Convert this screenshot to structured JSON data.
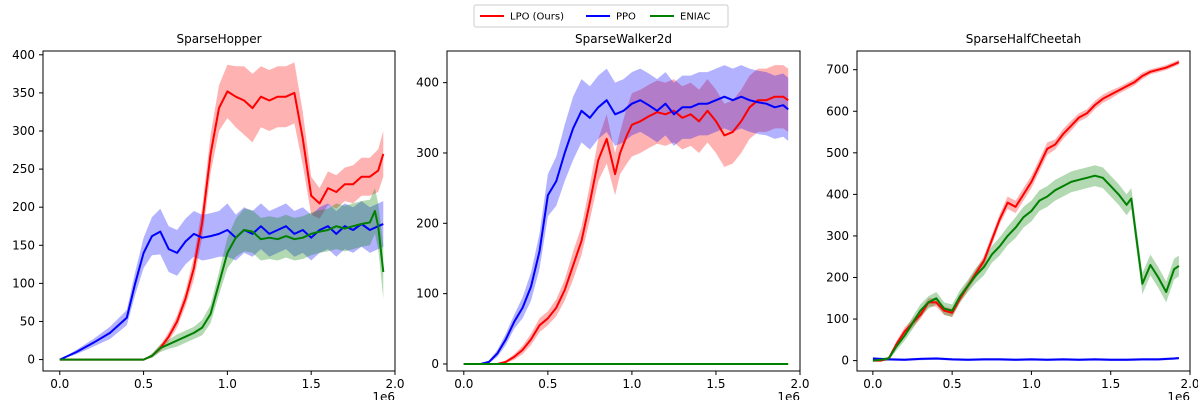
{
  "legend": {
    "placement": "top-center",
    "entries": [
      {
        "label": "LPO (Ours)",
        "color": "#ff0000"
      },
      {
        "label": "PPO",
        "color": "#0000ff"
      },
      {
        "label": "ENIAC",
        "color": "#008000"
      }
    ]
  },
  "chart_data": [
    {
      "type": "line",
      "title": "SparseHopper",
      "xlabel": "",
      "ylabel": "",
      "x_scale_label": "1e6",
      "xlim": [
        -0.1,
        2.0
      ],
      "ylim": [
        -15,
        405
      ],
      "xticks": [
        0.0,
        0.5,
        1.0,
        1.5,
        2.0
      ],
      "xtick_labels": [
        "0.0",
        "0.5",
        "1.0",
        "1.5",
        "2.0"
      ],
      "yticks": [
        0,
        50,
        100,
        150,
        200,
        250,
        300,
        350,
        400
      ],
      "grid": false,
      "series": [
        {
          "name": "LPO (Ours)",
          "color": "#ff0000",
          "x": [
            0,
            0.5,
            0.55,
            0.6,
            0.65,
            0.7,
            0.75,
            0.8,
            0.85,
            0.9,
            0.95,
            1.0,
            1.05,
            1.1,
            1.15,
            1.2,
            1.25,
            1.3,
            1.35,
            1.4,
            1.45,
            1.5,
            1.55,
            1.6,
            1.65,
            1.7,
            1.75,
            1.8,
            1.85,
            1.9,
            1.93
          ],
          "y": [
            0,
            0,
            5,
            15,
            30,
            50,
            80,
            120,
            180,
            270,
            330,
            352,
            345,
            340,
            330,
            345,
            340,
            345,
            345,
            350,
            290,
            215,
            205,
            225,
            220,
            230,
            230,
            240,
            240,
            248,
            270
          ],
          "band": [
            0,
            0,
            2,
            4,
            6,
            8,
            10,
            15,
            20,
            25,
            30,
            35,
            40,
            45,
            45,
            40,
            40,
            40,
            40,
            40,
            35,
            25,
            20,
            22,
            22,
            22,
            25,
            25,
            25,
            28,
            30
          ]
        },
        {
          "name": "PPO",
          "color": "#0000ff",
          "x": [
            0,
            0.1,
            0.2,
            0.3,
            0.4,
            0.45,
            0.5,
            0.55,
            0.6,
            0.65,
            0.7,
            0.75,
            0.8,
            0.85,
            0.9,
            0.95,
            1.0,
            1.05,
            1.1,
            1.15,
            1.2,
            1.25,
            1.3,
            1.35,
            1.4,
            1.45,
            1.5,
            1.55,
            1.6,
            1.65,
            1.7,
            1.75,
            1.8,
            1.85,
            1.9,
            1.93
          ],
          "y": [
            0,
            10,
            22,
            35,
            55,
            100,
            140,
            162,
            168,
            145,
            140,
            155,
            165,
            160,
            162,
            165,
            170,
            160,
            170,
            165,
            175,
            165,
            170,
            175,
            165,
            170,
            160,
            170,
            175,
            165,
            175,
            170,
            178,
            170,
            175,
            178
          ],
          "band": [
            0,
            3,
            5,
            8,
            10,
            15,
            20,
            25,
            30,
            30,
            30,
            30,
            30,
            30,
            30,
            30,
            35,
            30,
            30,
            30,
            30,
            30,
            30,
            30,
            30,
            30,
            30,
            30,
            30,
            30,
            30,
            30,
            30,
            30,
            30,
            30
          ]
        },
        {
          "name": "ENIAC",
          "color": "#008000",
          "x": [
            0,
            0.5,
            0.55,
            0.6,
            0.65,
            0.7,
            0.75,
            0.8,
            0.85,
            0.9,
            0.95,
            1.0,
            1.05,
            1.1,
            1.15,
            1.2,
            1.25,
            1.3,
            1.35,
            1.4,
            1.45,
            1.5,
            1.55,
            1.6,
            1.65,
            1.7,
            1.75,
            1.8,
            1.85,
            1.88,
            1.9,
            1.93
          ],
          "y": [
            0,
            0,
            5,
            15,
            20,
            25,
            30,
            35,
            42,
            60,
            100,
            140,
            160,
            170,
            168,
            158,
            160,
            158,
            162,
            158,
            160,
            165,
            168,
            170,
            175,
            172,
            175,
            178,
            180,
            195,
            175,
            115
          ],
          "band": [
            0,
            0,
            3,
            5,
            6,
            8,
            8,
            8,
            10,
            12,
            15,
            20,
            25,
            28,
            28,
            28,
            28,
            28,
            28,
            28,
            28,
            28,
            28,
            28,
            30,
            30,
            30,
            30,
            30,
            30,
            30,
            35
          ]
        }
      ]
    },
    {
      "type": "line",
      "title": "SparseWalker2d",
      "xlabel": "",
      "ylabel": "",
      "x_scale_label": "1e6",
      "xlim": [
        -0.1,
        2.0
      ],
      "ylim": [
        -10,
        445
      ],
      "xticks": [
        0.0,
        0.5,
        1.0,
        1.5,
        2.0
      ],
      "xtick_labels": [
        "0.0",
        "0.5",
        "1.0",
        "1.5",
        "2.0"
      ],
      "yticks": [
        0,
        100,
        200,
        300,
        400
      ],
      "grid": false,
      "series": [
        {
          "name": "LPO (Ours)",
          "color": "#ff0000",
          "x": [
            0,
            0.2,
            0.25,
            0.3,
            0.35,
            0.4,
            0.45,
            0.5,
            0.55,
            0.6,
            0.65,
            0.7,
            0.75,
            0.8,
            0.85,
            0.9,
            0.93,
            0.97,
            1.0,
            1.05,
            1.1,
            1.15,
            1.2,
            1.25,
            1.3,
            1.35,
            1.4,
            1.45,
            1.5,
            1.55,
            1.6,
            1.65,
            1.7,
            1.75,
            1.8,
            1.85,
            1.9,
            1.93
          ],
          "y": [
            0,
            0,
            3,
            10,
            20,
            35,
            55,
            65,
            80,
            105,
            140,
            175,
            230,
            290,
            320,
            270,
            300,
            325,
            340,
            345,
            352,
            358,
            355,
            360,
            350,
            355,
            345,
            360,
            345,
            325,
            330,
            345,
            365,
            375,
            375,
            380,
            380,
            375
          ],
          "band": [
            0,
            0,
            2,
            4,
            6,
            8,
            10,
            10,
            12,
            15,
            20,
            20,
            25,
            30,
            35,
            30,
            30,
            40,
            45,
            45,
            45,
            45,
            45,
            45,
            45,
            45,
            45,
            45,
            45,
            45,
            45,
            45,
            45,
            45,
            45,
            45,
            45,
            45
          ]
        },
        {
          "name": "PPO",
          "color": "#0000ff",
          "x": [
            0,
            0.1,
            0.15,
            0.2,
            0.25,
            0.3,
            0.35,
            0.4,
            0.45,
            0.5,
            0.55,
            0.6,
            0.65,
            0.7,
            0.75,
            0.8,
            0.85,
            0.9,
            0.95,
            1.0,
            1.05,
            1.1,
            1.15,
            1.2,
            1.25,
            1.3,
            1.35,
            1.4,
            1.45,
            1.5,
            1.55,
            1.6,
            1.65,
            1.7,
            1.75,
            1.8,
            1.85,
            1.9,
            1.93
          ],
          "y": [
            0,
            0,
            3,
            15,
            35,
            60,
            80,
            110,
            160,
            240,
            260,
            300,
            335,
            360,
            350,
            365,
            375,
            355,
            360,
            370,
            375,
            368,
            360,
            370,
            355,
            365,
            365,
            370,
            370,
            375,
            380,
            375,
            380,
            375,
            372,
            370,
            365,
            368,
            362
          ],
          "band": [
            0,
            0,
            2,
            5,
            8,
            10,
            15,
            20,
            25,
            30,
            35,
            40,
            45,
            45,
            45,
            45,
            45,
            45,
            45,
            45,
            45,
            45,
            45,
            45,
            45,
            45,
            45,
            45,
            45,
            45,
            45,
            45,
            45,
            45,
            45,
            45,
            45,
            45,
            45
          ]
        },
        {
          "name": "ENIAC",
          "color": "#008000",
          "x": [
            0,
            1.93
          ],
          "y": [
            0,
            0
          ],
          "band": [
            0,
            0
          ]
        }
      ]
    },
    {
      "type": "line",
      "title": "SparseHalfCheetah",
      "xlabel": "",
      "ylabel": "",
      "x_scale_label": "1e6",
      "xlim": [
        -0.1,
        2.0
      ],
      "ylim": [
        -25,
        745
      ],
      "xticks": [
        0.0,
        0.5,
        1.0,
        1.5,
        2.0
      ],
      "xtick_labels": [
        "0.0",
        "0.5",
        "1.0",
        "1.5",
        "2.0"
      ],
      "yticks": [
        0,
        100,
        200,
        300,
        400,
        500,
        600,
        700
      ],
      "grid": false,
      "series": [
        {
          "name": "LPO (Ours)",
          "color": "#ff0000",
          "x": [
            0,
            0.05,
            0.1,
            0.15,
            0.2,
            0.25,
            0.3,
            0.35,
            0.4,
            0.45,
            0.5,
            0.55,
            0.6,
            0.65,
            0.7,
            0.75,
            0.8,
            0.85,
            0.9,
            0.95,
            1.0,
            1.05,
            1.1,
            1.15,
            1.2,
            1.25,
            1.3,
            1.35,
            1.4,
            1.45,
            1.5,
            1.55,
            1.6,
            1.65,
            1.7,
            1.75,
            1.8,
            1.85,
            1.9,
            1.93
          ],
          "y": [
            0,
            0,
            5,
            40,
            70,
            90,
            110,
            140,
            140,
            120,
            115,
            150,
            180,
            210,
            240,
            290,
            340,
            380,
            370,
            400,
            430,
            470,
            510,
            520,
            545,
            565,
            585,
            595,
            615,
            630,
            640,
            650,
            660,
            670,
            685,
            695,
            700,
            705,
            713,
            718
          ],
          "band": [
            0,
            2,
            4,
            8,
            10,
            10,
            10,
            10,
            10,
            10,
            10,
            10,
            10,
            10,
            12,
            12,
            12,
            15,
            15,
            15,
            15,
            15,
            15,
            12,
            12,
            12,
            10,
            10,
            10,
            10,
            10,
            8,
            8,
            8,
            8,
            6,
            6,
            6,
            6,
            6
          ]
        },
        {
          "name": "PPO",
          "color": "#0000ff",
          "x": [
            0,
            0.1,
            0.2,
            0.3,
            0.4,
            0.5,
            0.6,
            0.7,
            0.8,
            0.9,
            1.0,
            1.1,
            1.2,
            1.3,
            1.4,
            1.5,
            1.6,
            1.7,
            1.8,
            1.9,
            1.93
          ],
          "y": [
            5,
            3,
            2,
            4,
            5,
            3,
            2,
            3,
            3,
            2,
            3,
            2,
            3,
            2,
            3,
            2,
            2,
            3,
            3,
            5,
            6
          ],
          "band": [
            3,
            3,
            3,
            3,
            3,
            3,
            3,
            3,
            3,
            3,
            3,
            3,
            3,
            3,
            3,
            3,
            3,
            3,
            3,
            3,
            3
          ]
        },
        {
          "name": "ENIAC",
          "color": "#008000",
          "x": [
            0,
            0.05,
            0.1,
            0.15,
            0.2,
            0.25,
            0.3,
            0.35,
            0.4,
            0.45,
            0.5,
            0.55,
            0.6,
            0.65,
            0.7,
            0.75,
            0.8,
            0.85,
            0.9,
            0.95,
            1.0,
            1.05,
            1.1,
            1.15,
            1.2,
            1.25,
            1.3,
            1.35,
            1.4,
            1.45,
            1.5,
            1.55,
            1.6,
            1.63,
            1.66,
            1.7,
            1.75,
            1.8,
            1.85,
            1.9,
            1.93
          ],
          "y": [
            0,
            2,
            5,
            35,
            60,
            90,
            120,
            140,
            150,
            125,
            120,
            155,
            180,
            205,
            225,
            255,
            275,
            300,
            320,
            345,
            360,
            385,
            395,
            410,
            420,
            430,
            435,
            440,
            445,
            440,
            420,
            400,
            375,
            390,
            300,
            185,
            230,
            200,
            165,
            220,
            228
          ],
          "band": [
            0,
            3,
            5,
            10,
            12,
            15,
            15,
            15,
            15,
            15,
            15,
            15,
            15,
            18,
            20,
            20,
            22,
            22,
            25,
            25,
            25,
            25,
            25,
            25,
            25,
            25,
            25,
            25,
            25,
            25,
            25,
            25,
            25,
            25,
            25,
            25,
            25,
            25,
            25,
            25,
            25
          ]
        }
      ]
    }
  ]
}
